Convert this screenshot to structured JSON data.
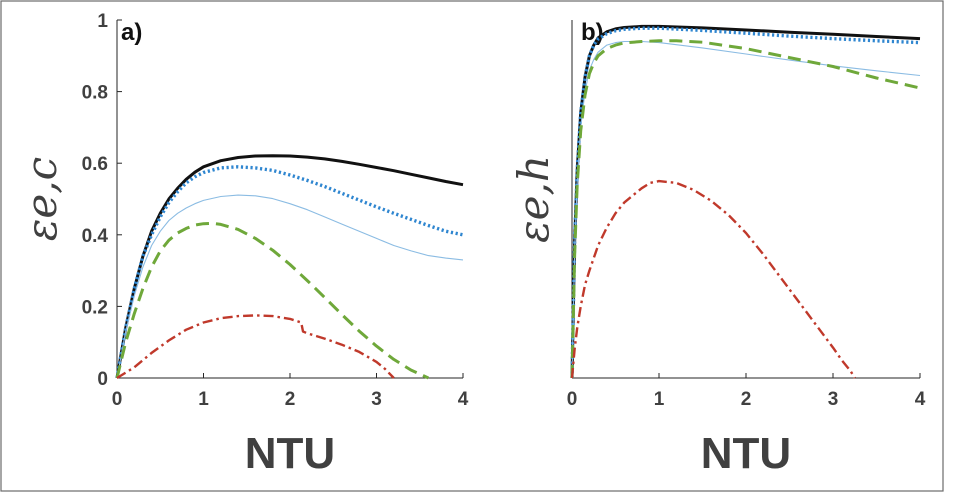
{
  "chart_data": [
    {
      "type": "line",
      "panel_label": "a)",
      "xlabel": "NTU",
      "ylabel": "ε",
      "ylabel_sub": "e,c",
      "xlim": [
        0,
        4
      ],
      "ylim": [
        0,
        1
      ],
      "xticks": [
        "0",
        "1",
        "2",
        "3",
        "4"
      ],
      "yticks": [
        "0",
        "0.2",
        "0.4",
        "0.6",
        "0.8",
        "1"
      ],
      "grid": false,
      "series": [
        {
          "color": "#111111",
          "style": "solid",
          "x": [
            0,
            0.1,
            0.2,
            0.3,
            0.4,
            0.5,
            0.6,
            0.7,
            0.8,
            0.9,
            1.0,
            1.2,
            1.4,
            1.6,
            1.8,
            2.0,
            2.2,
            2.4,
            2.6,
            2.8,
            3.0,
            3.2,
            3.4,
            3.6,
            3.8,
            4.0
          ],
          "y": [
            0,
            0.14,
            0.25,
            0.34,
            0.41,
            0.46,
            0.5,
            0.53,
            0.555,
            0.575,
            0.59,
            0.607,
            0.616,
            0.62,
            0.621,
            0.62,
            0.617,
            0.612,
            0.605,
            0.597,
            0.588,
            0.579,
            0.569,
            0.559,
            0.549,
            0.54
          ]
        },
        {
          "color": "#2f86d0",
          "style": "dotted",
          "x": [
            0,
            0.1,
            0.2,
            0.3,
            0.4,
            0.5,
            0.6,
            0.7,
            0.8,
            0.9,
            1.0,
            1.2,
            1.4,
            1.6,
            1.8,
            2.0,
            2.2,
            2.4,
            2.6,
            2.8,
            3.0,
            3.2,
            3.4,
            3.6,
            3.8,
            4.0
          ],
          "y": [
            0,
            0.14,
            0.25,
            0.34,
            0.4,
            0.45,
            0.49,
            0.52,
            0.545,
            0.562,
            0.574,
            0.587,
            0.59,
            0.587,
            0.58,
            0.567,
            0.552,
            0.535,
            0.516,
            0.497,
            0.478,
            0.46,
            0.443,
            0.426,
            0.41,
            0.4
          ]
        },
        {
          "color": "#8bbce3",
          "style": "thin",
          "x": [
            0,
            0.1,
            0.2,
            0.3,
            0.4,
            0.5,
            0.6,
            0.7,
            0.8,
            0.9,
            1.0,
            1.2,
            1.4,
            1.6,
            1.8,
            2.0,
            2.2,
            2.4,
            2.6,
            2.8,
            3.0,
            3.2,
            3.4,
            3.6,
            3.8,
            4.0
          ],
          "y": [
            0,
            0.13,
            0.23,
            0.31,
            0.37,
            0.41,
            0.44,
            0.46,
            0.475,
            0.487,
            0.496,
            0.507,
            0.511,
            0.509,
            0.501,
            0.487,
            0.47,
            0.45,
            0.43,
            0.41,
            0.39,
            0.37,
            0.355,
            0.342,
            0.335,
            0.33
          ]
        },
        {
          "color": "#6fa83a",
          "style": "dashed",
          "x": [
            0,
            0.1,
            0.2,
            0.3,
            0.4,
            0.5,
            0.6,
            0.7,
            0.8,
            0.9,
            1.0,
            1.1,
            1.2,
            1.4,
            1.6,
            1.8,
            2.0,
            2.2,
            2.4,
            2.6,
            2.8,
            3.0,
            3.2,
            3.4,
            3.6
          ],
          "y": [
            0,
            0.1,
            0.18,
            0.25,
            0.31,
            0.355,
            0.385,
            0.405,
            0.418,
            0.427,
            0.431,
            0.432,
            0.429,
            0.415,
            0.39,
            0.357,
            0.317,
            0.272,
            0.225,
            0.177,
            0.131,
            0.089,
            0.052,
            0.022,
            0
          ]
        },
        {
          "color": "#c0392b",
          "style": "dashdot",
          "x": [
            0,
            0.2,
            0.4,
            0.6,
            0.8,
            1.0,
            1.2,
            1.4,
            1.6,
            1.8,
            2.0,
            2.13,
            2.15,
            2.2,
            2.4,
            2.6,
            2.8,
            3.0,
            3.1,
            3.2
          ],
          "y": [
            0,
            0.03,
            0.07,
            0.105,
            0.135,
            0.155,
            0.167,
            0.173,
            0.175,
            0.173,
            0.165,
            0.155,
            0.13,
            0.125,
            0.11,
            0.093,
            0.073,
            0.045,
            0.025,
            0
          ]
        }
      ]
    },
    {
      "type": "line",
      "panel_label": "b)",
      "xlabel": "NTU",
      "ylabel": "ε",
      "ylabel_sub": "e,h",
      "xlim": [
        0,
        4
      ],
      "ylim": [
        0,
        1
      ],
      "xticks": [
        "0",
        "1",
        "2",
        "3",
        "4"
      ],
      "grid": false,
      "series": [
        {
          "color": "#111111",
          "style": "solid",
          "x": [
            0,
            0.03,
            0.06,
            0.1,
            0.15,
            0.2,
            0.25,
            0.3,
            0.4,
            0.5,
            0.6,
            0.8,
            1.0,
            1.5,
            2.0,
            2.5,
            3.0,
            3.5,
            4.0
          ],
          "y": [
            0,
            0.38,
            0.58,
            0.74,
            0.84,
            0.9,
            0.93,
            0.95,
            0.967,
            0.975,
            0.979,
            0.982,
            0.982,
            0.978,
            0.972,
            0.966,
            0.96,
            0.954,
            0.948
          ]
        },
        {
          "color": "#2f86d0",
          "style": "dotted",
          "x": [
            0,
            0.03,
            0.06,
            0.1,
            0.15,
            0.2,
            0.25,
            0.3,
            0.4,
            0.5,
            0.6,
            0.8,
            1.0,
            1.5,
            2.0,
            2.5,
            3.0,
            3.5,
            4.0
          ],
          "y": [
            0,
            0.38,
            0.58,
            0.74,
            0.84,
            0.9,
            0.93,
            0.947,
            0.962,
            0.97,
            0.974,
            0.977,
            0.977,
            0.971,
            0.963,
            0.955,
            0.948,
            0.942,
            0.937
          ]
        },
        {
          "color": "#8bbce3",
          "style": "thin",
          "x": [
            0,
            0.03,
            0.06,
            0.1,
            0.15,
            0.2,
            0.25,
            0.3,
            0.4,
            0.5,
            0.6,
            0.8,
            1.0,
            1.5,
            2.0,
            2.5,
            3.0,
            3.5,
            4.0
          ],
          "y": [
            0,
            0.35,
            0.55,
            0.7,
            0.8,
            0.86,
            0.89,
            0.91,
            0.93,
            0.937,
            0.94,
            0.94,
            0.937,
            0.922,
            0.905,
            0.888,
            0.872,
            0.858,
            0.845
          ]
        },
        {
          "color": "#6fa83a",
          "style": "dashed",
          "x": [
            0,
            0.03,
            0.06,
            0.1,
            0.15,
            0.2,
            0.25,
            0.3,
            0.4,
            0.5,
            0.6,
            0.8,
            1.0,
            1.2,
            1.5,
            2.0,
            2.5,
            3.0,
            3.5,
            4.0
          ],
          "y": [
            0,
            0.34,
            0.54,
            0.69,
            0.79,
            0.85,
            0.88,
            0.9,
            0.92,
            0.93,
            0.936,
            0.94,
            0.942,
            0.942,
            0.938,
            0.92,
            0.895,
            0.87,
            0.838,
            0.81
          ]
        },
        {
          "color": "#c0392b",
          "style": "dashdot",
          "x": [
            0,
            0.03,
            0.06,
            0.1,
            0.15,
            0.2,
            0.3,
            0.4,
            0.5,
            0.6,
            0.7,
            0.8,
            0.9,
            1.0,
            1.2,
            1.4,
            1.6,
            1.8,
            2.0,
            2.2,
            2.4,
            2.6,
            2.8,
            3.0,
            3.1,
            3.2,
            3.25
          ],
          "y": [
            0,
            0.08,
            0.14,
            0.2,
            0.26,
            0.3,
            0.37,
            0.42,
            0.46,
            0.49,
            0.51,
            0.53,
            0.545,
            0.55,
            0.545,
            0.525,
            0.495,
            0.455,
            0.405,
            0.345,
            0.28,
            0.215,
            0.15,
            0.085,
            0.05,
            0.02,
            0
          ]
        }
      ]
    }
  ]
}
